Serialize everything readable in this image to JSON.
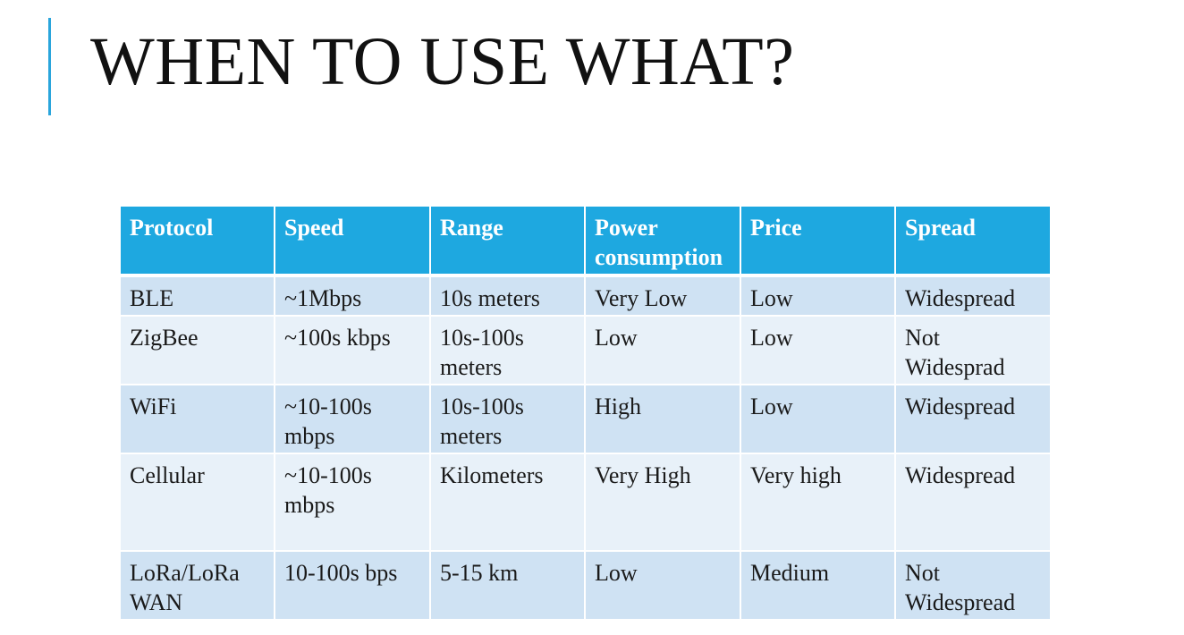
{
  "slide": {
    "title": "WHEN TO USE WHAT?"
  },
  "table": {
    "headers": [
      "Protocol",
      "Speed",
      "Range",
      "Power consumption",
      "Price",
      "Spread"
    ],
    "rows": [
      [
        "BLE",
        "~1Mbps",
        "10s meters",
        "Very Low",
        "Low",
        "Widespread"
      ],
      [
        "ZigBee",
        "~100s kbps",
        "10s-100s meters",
        "Low",
        "Low",
        "Not Widesprad"
      ],
      [
        "WiFi",
        "~10-100s mbps",
        "10s-100s meters",
        "High",
        "Low",
        "Widespread"
      ],
      [
        "Cellular",
        "~10-100s mbps",
        "Kilometers",
        "Very High",
        "Very high",
        "Widespread"
      ],
      [
        "LoRa/LoRa WAN",
        "10-100s bps",
        "5-15 km",
        "Low",
        "Medium",
        "Not Widespread"
      ]
    ]
  },
  "colors": {
    "accent": "#2aa5dc",
    "header_fill": "#1ea8e0",
    "row_odd_fill": "#cfe2f3",
    "row_even_fill": "#e8f1f9"
  }
}
